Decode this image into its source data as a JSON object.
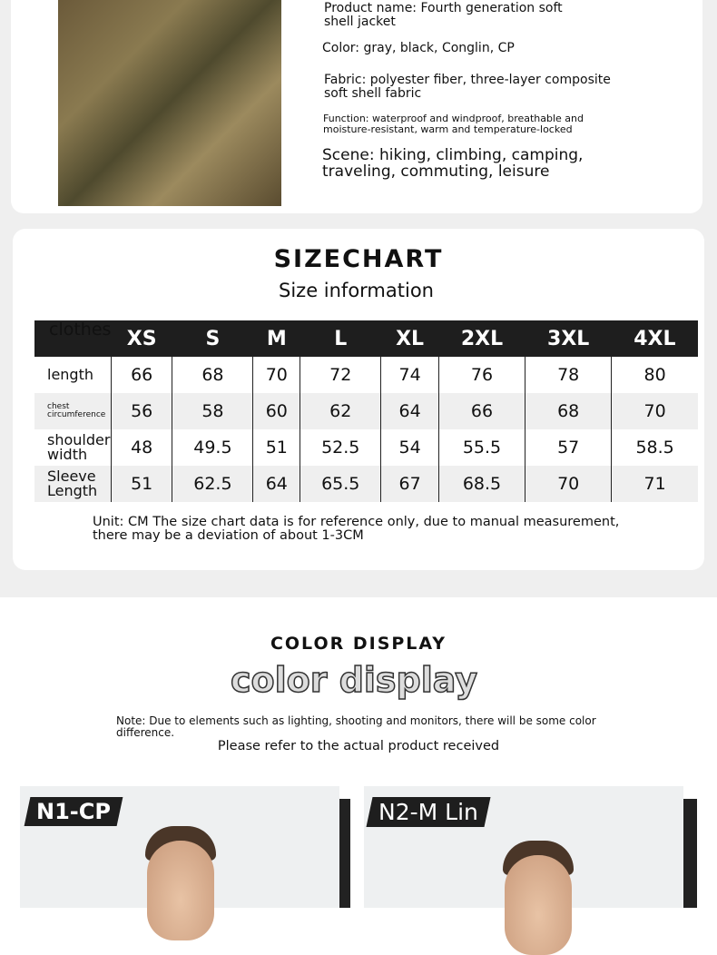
{
  "product": {
    "name": "Product name: Fourth generation soft shell jacket",
    "color": "Color: gray, black, Conglin, CP",
    "fabric": "Fabric: polyester fiber, three-layer composite soft shell fabric",
    "function": "Function: waterproof and windproof, breathable and moisture-resistant, warm and temperature-locked",
    "scene": "Scene: hiking, climbing, camping, traveling, commuting, leisure"
  },
  "sizechart": {
    "title": "SIZECHART",
    "subtitle": "Size information",
    "headers": [
      "clothes",
      "XS",
      "S",
      "M",
      "L",
      "XL",
      "2XL",
      "3XL",
      "4XL"
    ],
    "rows": [
      [
        "length",
        "66",
        "68",
        "70",
        "72",
        "74",
        "76",
        "78",
        "80"
      ],
      [
        "chest circumference",
        "56",
        "58",
        "60",
        "62",
        "64",
        "66",
        "68",
        "70"
      ],
      [
        "shoulder width",
        "48",
        "49.5",
        "51",
        "52.5",
        "54",
        "55.5",
        "57",
        "58.5"
      ],
      [
        "Sleeve Length",
        "51",
        "62.5",
        "64",
        "65.5",
        "67",
        "68.5",
        "70",
        "71"
      ]
    ],
    "note": "Unit: CM The size chart data is for reference only, due to manual measurement, there may be a deviation of about 1-3CM"
  },
  "colors": {
    "title": "COLOR DISPLAY",
    "subtitle": "color display",
    "note": "Note: Due to elements such as lighting, shooting and monitors, there will be some color difference.",
    "refer": "Please refer to the actual product received",
    "items": [
      {
        "label": "N1-CP"
      },
      {
        "label": "N2-M Lin"
      }
    ]
  }
}
